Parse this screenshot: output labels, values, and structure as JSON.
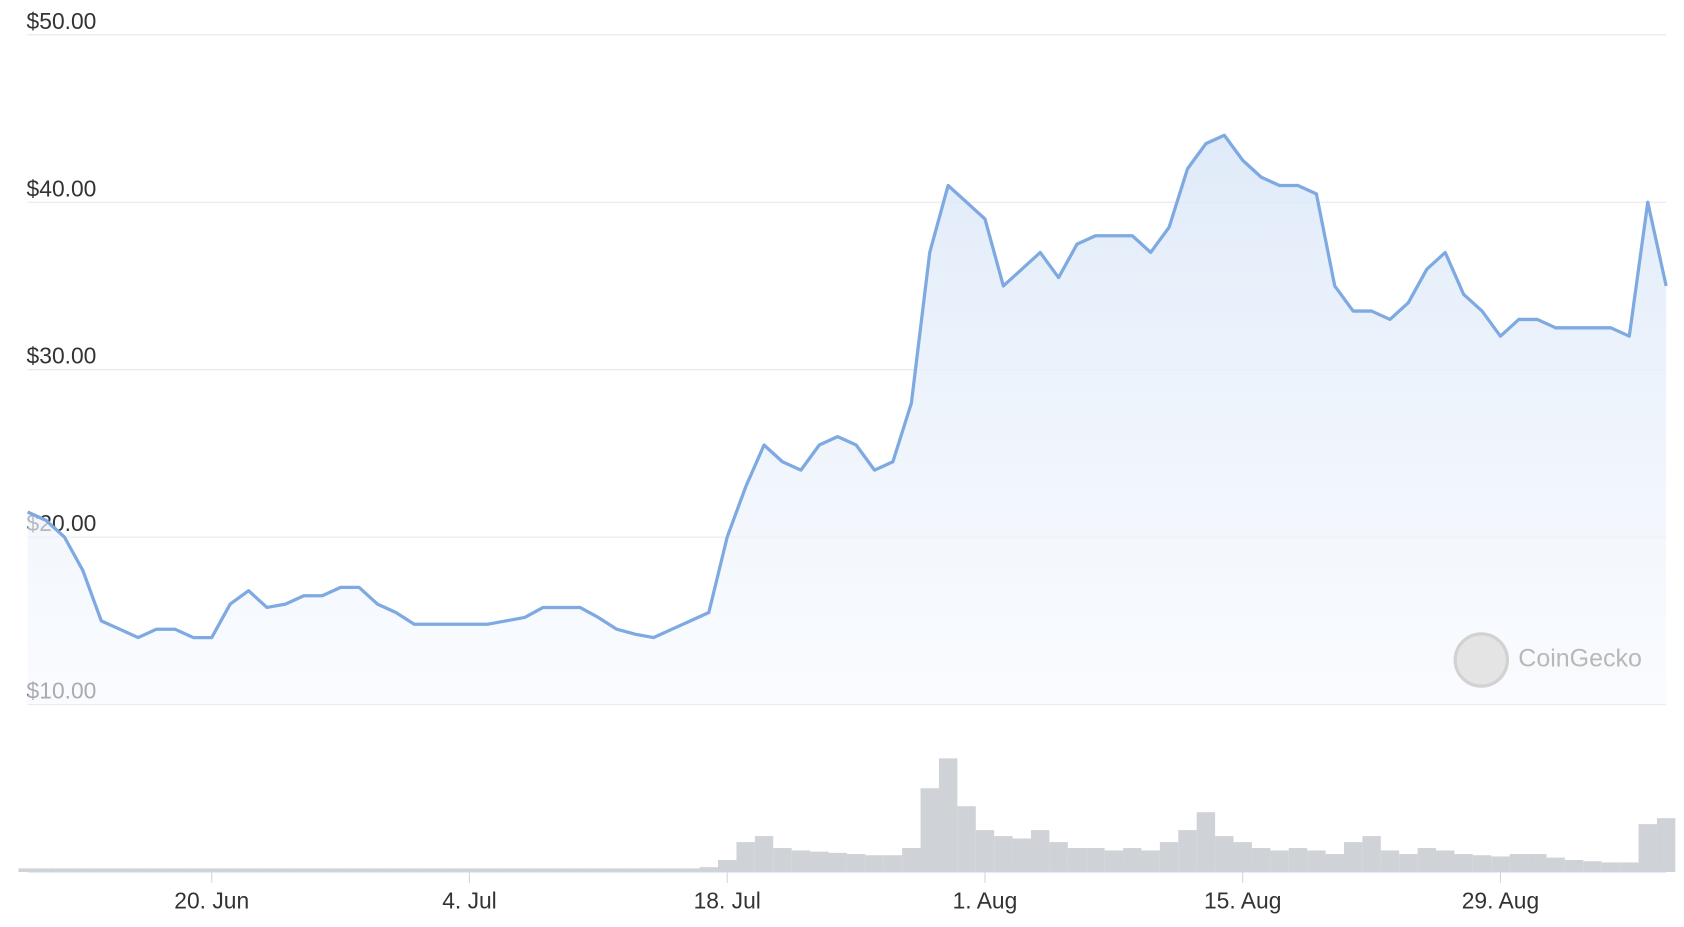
{
  "chart_data": {
    "type": "line",
    "categories": [
      null,
      null,
      null,
      null,
      null,
      null,
      null,
      null,
      null,
      null,
      "20. Jun",
      null,
      null,
      null,
      null,
      null,
      null,
      null,
      null,
      null,
      null,
      null,
      null,
      null,
      "4. Jul",
      null,
      null,
      null,
      null,
      null,
      null,
      null,
      null,
      null,
      null,
      null,
      null,
      null,
      "18. Jul",
      null,
      null,
      null,
      null,
      null,
      null,
      null,
      null,
      null,
      null,
      null,
      null,
      null,
      "1. Aug",
      null,
      null,
      null,
      null,
      null,
      null,
      null,
      null,
      null,
      null,
      null,
      null,
      null,
      "15. Aug",
      null,
      null,
      null,
      null,
      null,
      null,
      null,
      null,
      null,
      null,
      null,
      null,
      null,
      "29. Aug",
      null,
      null,
      null,
      null,
      null,
      null,
      null,
      null,
      null
    ],
    "values": [
      21.5,
      21,
      20,
      18,
      15,
      14.5,
      14,
      14.5,
      14.5,
      14,
      14,
      16,
      16.8,
      15.8,
      16,
      16.5,
      16.5,
      17,
      17,
      16,
      15.5,
      14.8,
      14.8,
      14.8,
      14.8,
      14.8,
      15,
      15.2,
      15.8,
      15.8,
      15.8,
      15.2,
      14.5,
      14.2,
      14,
      14.5,
      15,
      15.5,
      20,
      23,
      25.5,
      24.5,
      24,
      25.5,
      26,
      25.5,
      24,
      24.5,
      28,
      37,
      41,
      40,
      39,
      35,
      36,
      37,
      35.5,
      37.5,
      38,
      38,
      38,
      37,
      38.5,
      42,
      43.5,
      44,
      42.5,
      41.5,
      41,
      41,
      40.5,
      35,
      33.5,
      33.5,
      33,
      34,
      36,
      37,
      34.5,
      33.5,
      32,
      33,
      33,
      32.5,
      32.5,
      32.5,
      32.5,
      32,
      40,
      35
    ],
    "color": "#7ea9e1",
    "ylim": [
      10,
      50
    ],
    "yticks": [
      {
        "value": 10,
        "label": "$10.00"
      },
      {
        "value": 20,
        "label": "$20.00"
      },
      {
        "value": 30,
        "label": "$30.00"
      },
      {
        "value": 40,
        "label": "$40.00"
      },
      {
        "value": 50,
        "label": "$50.00"
      }
    ],
    "grid": true,
    "volume": {
      "values": [
        3,
        3,
        3,
        3,
        3,
        3,
        3,
        3,
        3,
        3,
        3,
        3,
        3,
        3,
        3,
        3,
        3,
        3,
        3,
        3,
        3,
        3,
        3,
        3,
        3,
        3,
        3,
        3,
        3,
        3,
        3,
        3,
        3,
        3,
        3,
        3,
        3,
        4,
        10,
        25,
        30,
        20,
        18,
        17,
        16,
        15,
        14,
        14,
        20,
        70,
        95,
        55,
        35,
        30,
        28,
        35,
        25,
        20,
        20,
        18,
        20,
        18,
        25,
        35,
        50,
        30,
        25,
        20,
        18,
        20,
        18,
        15,
        25,
        30,
        18,
        15,
        20,
        18,
        15,
        14,
        13,
        15,
        15,
        12,
        10,
        9,
        8,
        8,
        40,
        45
      ],
      "ylim": [
        0,
        100
      ],
      "color": "#cfd2d6"
    },
    "watermark": "CoinGecko"
  }
}
